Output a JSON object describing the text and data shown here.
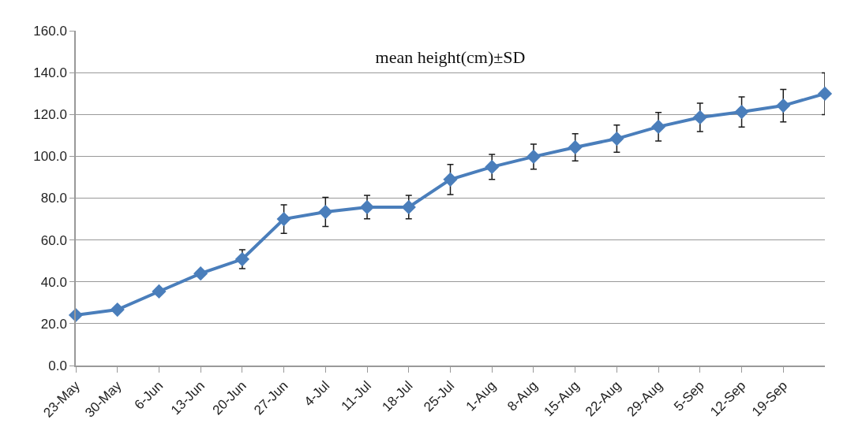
{
  "chart_data": {
    "type": "line",
    "title": "mean height(cm)±SD",
    "categories": [
      "23-May",
      "30-May",
      "6-Jun",
      "13-Jun",
      "20-Jun",
      "27-Jun",
      "4-Jul",
      "11-Jul",
      "18-Jul",
      "25-Jul",
      "1-Aug",
      "8-Aug",
      "15-Aug",
      "22-Aug",
      "29-Aug",
      "5-Sep",
      "12-Sep",
      "19-Sep",
      null
    ],
    "series": [
      {
        "color": "#4a7ebb",
        "values": [
          24.1,
          26.7,
          35.4,
          44,
          50.8,
          70,
          73.4,
          75.7,
          75.7,
          88.9,
          94.9,
          99.8,
          104.3,
          108.4,
          114.1,
          118.6,
          121.2,
          124.2,
          129.9
        ],
        "errors": [
          null,
          null,
          null,
          null,
          4.5,
          6.8,
          7,
          5.6,
          5.6,
          7.2,
          6,
          6,
          6.5,
          6.5,
          6.8,
          6.8,
          7.2,
          7.8,
          10
        ]
      }
    ],
    "ylim": [
      0,
      160
    ],
    "yticks": [
      {
        "value": 0,
        "label": "0.0"
      },
      {
        "value": 20,
        "label": "20.0"
      },
      {
        "value": 40,
        "label": "40.0"
      },
      {
        "value": 60,
        "label": "60.0"
      },
      {
        "value": 80,
        "label": "80.0"
      },
      {
        "value": 100,
        "label": "100.0"
      },
      {
        "value": 120,
        "label": "120.0"
      },
      {
        "value": 140,
        "label": "140.0"
      },
      {
        "value": 160,
        "label": "160.0"
      }
    ],
    "grid": "y",
    "marker": "diamond",
    "line_style": "solid"
  }
}
